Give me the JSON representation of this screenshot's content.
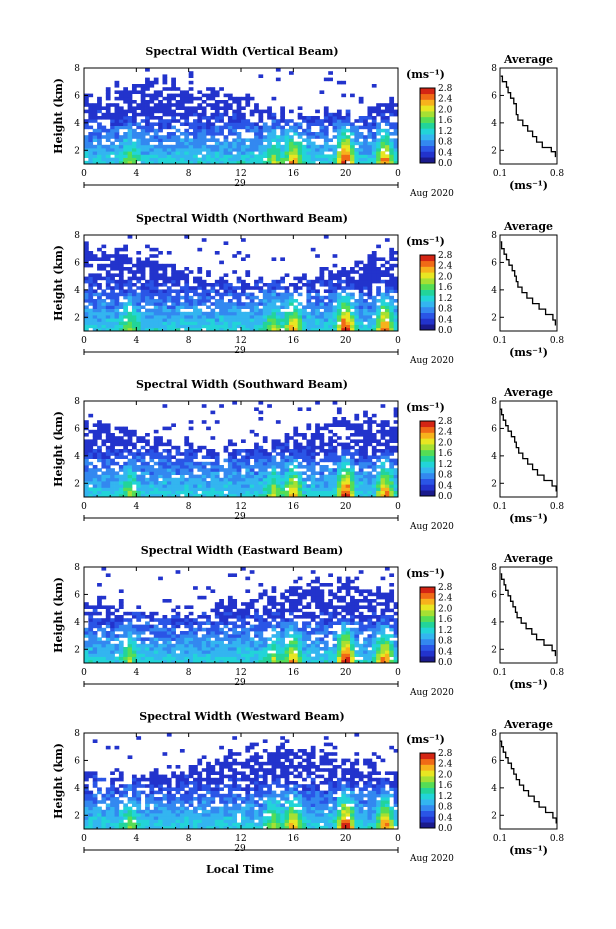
{
  "colors": {
    "scale": [
      "#1a1a8c",
      "#2233cc",
      "#2a55e6",
      "#3388f0",
      "#33b5f0",
      "#22d4d8",
      "#22d49a",
      "#55dd55",
      "#a6e033",
      "#e8e622",
      "#f7b21c",
      "#f06a16",
      "#d42514"
    ],
    "text": "#000000"
  },
  "chart_data": [
    {
      "type": "heatmap",
      "title": "Spectral Width (Vertical Beam)",
      "ylabel": "Height (km)",
      "ylim": [
        1,
        8
      ],
      "yticks": [
        "2",
        "4",
        "6",
        "8"
      ],
      "xlim": [
        0,
        24
      ],
      "xticks": [
        "0",
        "4",
        "8",
        "12",
        "16",
        "20",
        "0"
      ],
      "date_label": "29",
      "month_label": "Aug 2020",
      "colorbar": {
        "unit": "(ms⁻¹)",
        "ticks": [
          "0.0",
          "0.4",
          "0.8",
          "1.2",
          "1.6",
          "2.0",
          "2.4",
          "2.8"
        ],
        "range": [
          0,
          2.8
        ]
      },
      "average": {
        "title": "Average",
        "xlabel": "(ms⁻¹)",
        "xticks": [
          "0.1",
          "0.8"
        ],
        "xlim": [
          0.1,
          0.8
        ],
        "ylim": [
          1,
          8
        ],
        "yticks": [
          "2",
          "4",
          "6",
          "8"
        ],
        "profile": [
          [
            0.78,
            1.5
          ],
          [
            0.73,
            1.9
          ],
          [
            0.62,
            2.2
          ],
          [
            0.55,
            2.6
          ],
          [
            0.5,
            3.0
          ],
          [
            0.44,
            3.4
          ],
          [
            0.38,
            3.8
          ],
          [
            0.32,
            4.2
          ],
          [
            0.3,
            4.6
          ],
          [
            0.3,
            5.0
          ],
          [
            0.27,
            5.4
          ],
          [
            0.23,
            5.8
          ],
          [
            0.2,
            6.2
          ],
          [
            0.18,
            6.6
          ],
          [
            0.13,
            7.0
          ],
          [
            0.11,
            7.4
          ]
        ]
      }
    },
    {
      "type": "heatmap",
      "title": "Spectral Width (Northward Beam)",
      "ylabel": "Height (km)",
      "ylim": [
        1,
        8
      ],
      "yticks": [
        "2",
        "4",
        "6",
        "8"
      ],
      "xlim": [
        0,
        24
      ],
      "xticks": [
        "0",
        "4",
        "8",
        "12",
        "16",
        "20",
        "0"
      ],
      "date_label": "29",
      "month_label": "Aug 2020",
      "colorbar": {
        "unit": "(ms⁻¹)",
        "ticks": [
          "0.0",
          "0.4",
          "0.8",
          "1.2",
          "1.6",
          "2.0",
          "2.4",
          "2.8"
        ],
        "range": [
          0,
          2.8
        ]
      },
      "average": {
        "title": "Average",
        "xlabel": "(ms⁻¹)",
        "xticks": [
          "0.1",
          "0.8"
        ],
        "xlim": [
          0.1,
          0.8
        ],
        "ylim": [
          1,
          8
        ],
        "yticks": [
          "2",
          "4",
          "6",
          "8"
        ],
        "profile": [
          [
            0.78,
            1.4
          ],
          [
            0.75,
            1.8
          ],
          [
            0.66,
            2.2
          ],
          [
            0.58,
            2.6
          ],
          [
            0.5,
            3.0
          ],
          [
            0.43,
            3.4
          ],
          [
            0.37,
            3.8
          ],
          [
            0.32,
            4.2
          ],
          [
            0.3,
            4.6
          ],
          [
            0.28,
            5.0
          ],
          [
            0.25,
            5.4
          ],
          [
            0.21,
            5.8
          ],
          [
            0.18,
            6.2
          ],
          [
            0.15,
            6.6
          ],
          [
            0.12,
            7.0
          ],
          [
            0.11,
            7.5
          ]
        ]
      }
    },
    {
      "type": "heatmap",
      "title": "Spectral Width (Southward Beam)",
      "ylabel": "Height (km)",
      "ylim": [
        1,
        8
      ],
      "yticks": [
        "2",
        "4",
        "6",
        "8"
      ],
      "xlim": [
        0,
        24
      ],
      "xticks": [
        "0",
        "4",
        "8",
        "12",
        "16",
        "20",
        "0"
      ],
      "date_label": "29",
      "month_label": "Aug 2020",
      "colorbar": {
        "unit": "(ms⁻¹)",
        "ticks": [
          "0.0",
          "0.4",
          "0.8",
          "1.2",
          "1.6",
          "2.0",
          "2.4",
          "2.8"
        ],
        "range": [
          0,
          2.8
        ]
      },
      "average": {
        "title": "Average",
        "xlabel": "(ms⁻¹)",
        "xticks": [
          "0.1",
          "0.8"
        ],
        "xlim": [
          0.1,
          0.8
        ],
        "ylim": [
          1,
          8
        ],
        "yticks": [
          "2",
          "4",
          "6",
          "8"
        ],
        "profile": [
          [
            0.79,
            1.4
          ],
          [
            0.74,
            1.8
          ],
          [
            0.64,
            2.2
          ],
          [
            0.56,
            2.6
          ],
          [
            0.5,
            3.0
          ],
          [
            0.44,
            3.4
          ],
          [
            0.38,
            3.8
          ],
          [
            0.33,
            4.2
          ],
          [
            0.3,
            4.6
          ],
          [
            0.28,
            5.0
          ],
          [
            0.24,
            5.4
          ],
          [
            0.2,
            5.8
          ],
          [
            0.17,
            6.2
          ],
          [
            0.14,
            6.6
          ],
          [
            0.12,
            7.0
          ],
          [
            0.1,
            7.4
          ]
        ]
      }
    },
    {
      "type": "heatmap",
      "title": "Spectral Width (Eastward Beam)",
      "ylabel": "Height (km)",
      "ylim": [
        1,
        8
      ],
      "yticks": [
        "2",
        "4",
        "6",
        "8"
      ],
      "xlim": [
        0,
        24
      ],
      "xticks": [
        "0",
        "4",
        "8",
        "12",
        "16",
        "20",
        "0"
      ],
      "date_label": "29",
      "month_label": "Aug 2020",
      "colorbar": {
        "unit": "(ms⁻¹)",
        "ticks": [
          "0.0",
          "0.4",
          "0.8",
          "1.2",
          "1.6",
          "2.0",
          "2.4",
          "2.8"
        ],
        "range": [
          0,
          2.8
        ]
      },
      "average": {
        "title": "Average",
        "xlabel": "(ms⁻¹)",
        "xticks": [
          "0.1",
          "0.8"
        ],
        "xlim": [
          0.1,
          0.8
        ],
        "ylim": [
          1,
          8
        ],
        "yticks": [
          "2",
          "4",
          "6",
          "8"
        ],
        "profile": [
          [
            0.78,
            1.5
          ],
          [
            0.74,
            1.9
          ],
          [
            0.64,
            2.3
          ],
          [
            0.55,
            2.7
          ],
          [
            0.49,
            3.1
          ],
          [
            0.42,
            3.5
          ],
          [
            0.36,
            3.9
          ],
          [
            0.31,
            4.3
          ],
          [
            0.29,
            4.7
          ],
          [
            0.26,
            5.1
          ],
          [
            0.23,
            5.5
          ],
          [
            0.2,
            5.9
          ],
          [
            0.17,
            6.3
          ],
          [
            0.15,
            6.7
          ],
          [
            0.12,
            7.1
          ],
          [
            0.11,
            7.5
          ]
        ]
      }
    },
    {
      "type": "heatmap",
      "title": "Spectral Width (Westward Beam)",
      "ylabel": "Height (km)",
      "ylim": [
        1,
        8
      ],
      "yticks": [
        "2",
        "4",
        "6",
        "8"
      ],
      "xlim": [
        0,
        24
      ],
      "xticks": [
        "0",
        "4",
        "8",
        "12",
        "16",
        "20",
        "0"
      ],
      "date_label": "29",
      "month_label": "Aug 2020",
      "xlabel": "Local Time",
      "colorbar": {
        "unit": "(ms⁻¹)",
        "ticks": [
          "0.0",
          "0.4",
          "0.8",
          "1.2",
          "1.6",
          "2.0",
          "2.4",
          "2.8"
        ],
        "range": [
          0,
          2.8
        ]
      },
      "average": {
        "title": "Average",
        "xlabel": "(ms⁻¹)",
        "xticks": [
          "0.1",
          "0.8"
        ],
        "xlim": [
          0.1,
          0.8
        ],
        "ylim": [
          1,
          8
        ],
        "yticks": [
          "2",
          "4",
          "6",
          "8"
        ],
        "profile": [
          [
            0.79,
            1.4
          ],
          [
            0.75,
            1.8
          ],
          [
            0.66,
            2.2
          ],
          [
            0.58,
            2.6
          ],
          [
            0.52,
            3.0
          ],
          [
            0.45,
            3.4
          ],
          [
            0.39,
            3.8
          ],
          [
            0.34,
            4.2
          ],
          [
            0.3,
            4.6
          ],
          [
            0.27,
            5.0
          ],
          [
            0.24,
            5.4
          ],
          [
            0.2,
            5.8
          ],
          [
            0.17,
            6.2
          ],
          [
            0.14,
            6.6
          ],
          [
            0.12,
            7.0
          ],
          [
            0.1,
            7.4
          ]
        ]
      }
    }
  ]
}
